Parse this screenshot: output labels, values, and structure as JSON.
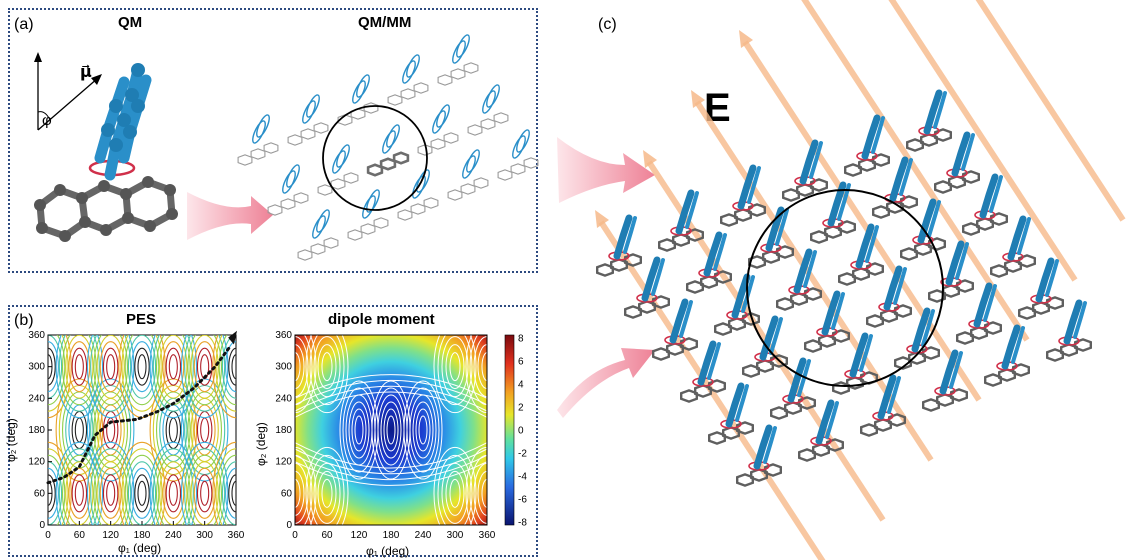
{
  "panel_a": {
    "label": "(a)",
    "qm_title": "QM",
    "qmmm_title": "QM/MM",
    "phi_symbol": "φ",
    "mu_symbol": "μ⃗"
  },
  "panel_b": {
    "label": "(b)",
    "pes_title": "PES",
    "dipole_title": "dipole moment",
    "x_label": "φ₁ (deg)",
    "y_label": "φ₂ (deg)",
    "x_ticks": [
      "0",
      "60",
      "120",
      "180",
      "240",
      "300",
      "360"
    ],
    "y_ticks": [
      "0",
      "60",
      "120",
      "180",
      "240",
      "300",
      "360"
    ],
    "colorbar_ticks": [
      "8",
      "6",
      "4",
      "2",
      "0",
      "-2",
      "-4",
      "-6",
      "-8"
    ]
  },
  "panel_c": {
    "label": "(c)",
    "field_label": "E"
  },
  "colors": {
    "frame": "#2d4a80",
    "molecule_blue": "#2a8fc9",
    "molecule_gray": "#6d6d6d",
    "ring_red": "#d0304a",
    "arrow_orange": "#f6b98a",
    "arrow_pink": "#f08a9a"
  },
  "chart_data": [
    {
      "type": "heatmap",
      "title": "PES",
      "xlabel": "φ₁ (deg)",
      "ylabel": "φ₂ (deg)",
      "xlim": [
        0,
        360
      ],
      "ylim": [
        0,
        360
      ],
      "note_path": "dotted minimum-energy path from (0, 80) to (360, 360)"
    },
    {
      "type": "heatmap",
      "title": "dipole moment",
      "xlabel": "φ₁ (deg)",
      "ylabel": "φ₂ (deg)",
      "xlim": [
        0,
        360
      ],
      "ylim": [
        0,
        360
      ],
      "colorbar_range": [
        -8,
        8
      ]
    }
  ]
}
